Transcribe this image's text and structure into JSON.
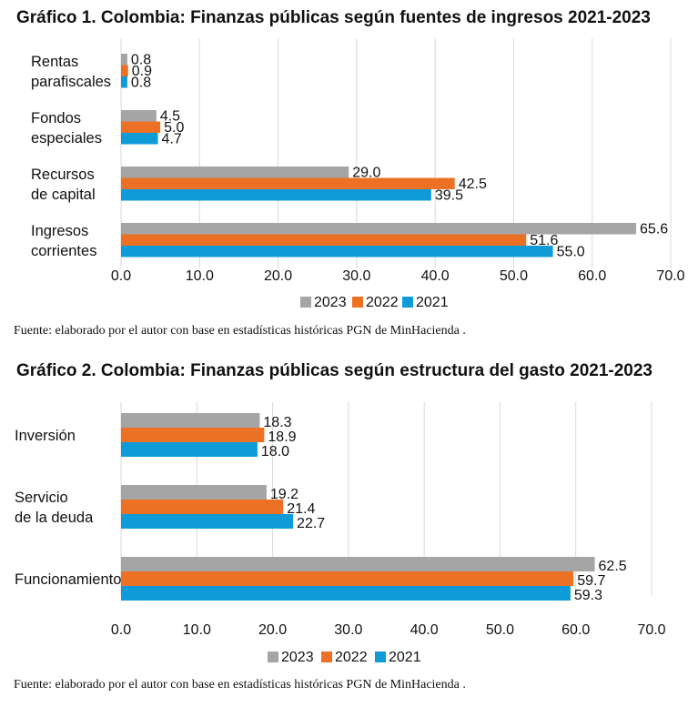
{
  "chart_data": [
    {
      "type": "bar",
      "orientation": "horizontal",
      "title": "Gráfico 1. Colombia: Finanzas públicas según fuentes de ingresos 2021-2023",
      "categories": [
        [
          "Rentas",
          "parafiscales"
        ],
        [
          "Fondos",
          "especiales"
        ],
        [
          "Recursos",
          "de capital"
        ],
        [
          "Ingresos",
          "corrientes"
        ]
      ],
      "series": [
        {
          "name": "2023",
          "color": "#a5a5a5",
          "values": [
            0.8,
            4.5,
            29.0,
            65.6
          ]
        },
        {
          "name": "2022",
          "color": "#ed7125",
          "values": [
            0.9,
            5.0,
            42.5,
            51.6
          ]
        },
        {
          "name": "2021",
          "color": "#0e9bd8",
          "values": [
            0.8,
            4.7,
            39.5,
            55.0
          ]
        }
      ],
      "value_labels": [
        [
          "0.8",
          "4.5",
          "29.0",
          "65.6"
        ],
        [
          "0.9",
          "5.0",
          "42.5",
          "51.6"
        ],
        [
          "0.8",
          "4.7",
          "39.5",
          "55.0"
        ]
      ],
      "ticks": [
        "0.0",
        "10.0",
        "20.0",
        "30.0",
        "40.0",
        "50.0",
        "60.0",
        "70.0"
      ],
      "xlim": [
        0,
        70
      ],
      "grid": true,
      "legend": "bottom-center",
      "source": "Fuente: elaborado por el autor con base en estadísticas históricas PGN de MinHacienda ."
    },
    {
      "type": "bar",
      "orientation": "horizontal",
      "title": "Gráfico 2. Colombia: Finanzas públicas según estructura del gasto 2021-2023",
      "categories": [
        [
          "Inversión"
        ],
        [
          "Servicio",
          "de la deuda"
        ],
        [
          "Funcionamiento"
        ]
      ],
      "series": [
        {
          "name": "2023",
          "color": "#a5a5a5",
          "values": [
            18.3,
            19.2,
            62.5
          ]
        },
        {
          "name": "2022",
          "color": "#ed7125",
          "values": [
            18.9,
            21.4,
            59.7
          ]
        },
        {
          "name": "2021",
          "color": "#0e9bd8",
          "values": [
            18.0,
            22.7,
            59.3
          ]
        }
      ],
      "value_labels": [
        [
          "18.3",
          "19.2",
          "62.5"
        ],
        [
          "18.9",
          "21.4",
          "59.7"
        ],
        [
          "18.0",
          "22.7",
          "59.3"
        ]
      ],
      "ticks": [
        "0.0",
        "10.0",
        "20.0",
        "30.0",
        "40.0",
        "50.0",
        "60.0",
        "70.0"
      ],
      "xlim": [
        0,
        70
      ],
      "grid": true,
      "legend": "bottom-center",
      "source": "Fuente: elaborado por el autor con base en estadísticas históricas PGN de MinHacienda ."
    }
  ]
}
